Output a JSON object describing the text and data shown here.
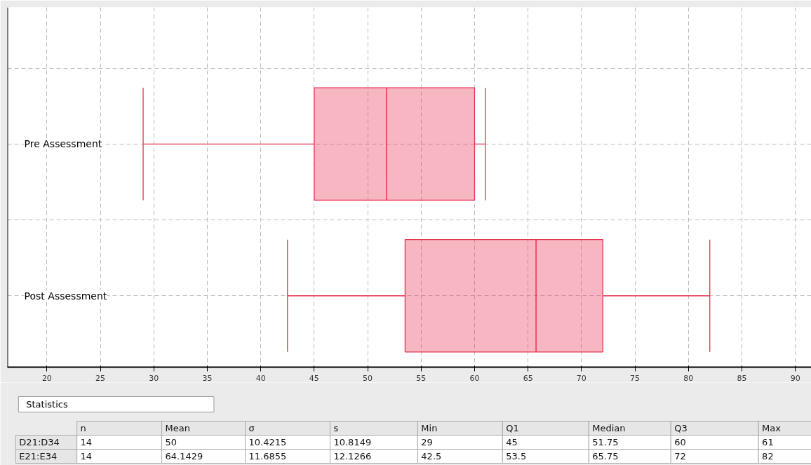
{
  "chart_data": {
    "type": "box",
    "orientation": "horizontal",
    "categories": [
      "Pre Assessment",
      "Post Assessment"
    ],
    "boxes": [
      {
        "low": 29,
        "q1": 45,
        "median": 51.75,
        "q3": 60,
        "high": 61
      },
      {
        "low": 42.5,
        "q1": 53.5,
        "median": 65.75,
        "q3": 72,
        "high": 82
      }
    ],
    "color": "#e8314f",
    "xlim": [
      16.3,
      91.5
    ],
    "xticks": [
      20,
      25,
      30,
      35,
      40,
      45,
      50,
      55,
      60,
      65,
      70,
      75,
      80,
      85,
      90
    ],
    "grid": true,
    "annotations": [
      "Statistics",
      "\tn\tMean\tσ\ts\tMin\tQ1\tMedian\tQ3\tMax",
      "D21:D34\t14\t50\t10.4215\t10.8149\t29\t45\t51.75\t60\t61",
      "E21:E34\t14\t64.1429\t11.6855\t12.1266\t42.5\t53.5\t65.75\t72\t82"
    ]
  }
}
